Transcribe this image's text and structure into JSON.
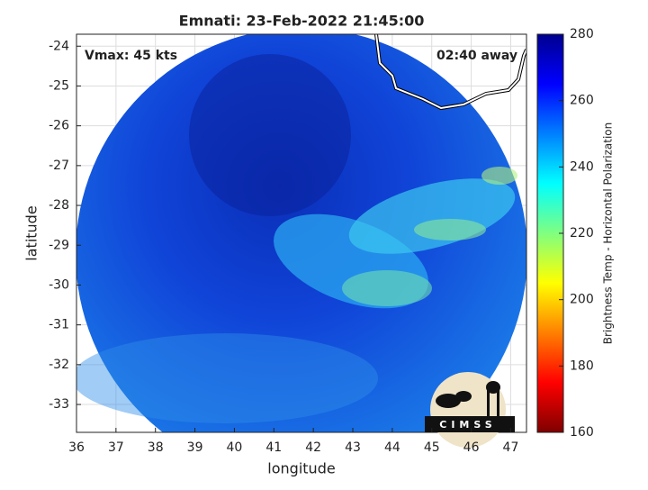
{
  "chart_data": {
    "type": "map",
    "title": "Emnati: 23-Feb-2022 21:45:00",
    "x_label": "longitude",
    "y_label": "latitude",
    "xlim": [
      36,
      47.4
    ],
    "ylim": [
      -33.7,
      -23.7
    ],
    "xticks": [
      36,
      37,
      38,
      39,
      40,
      41,
      42,
      43,
      44,
      45,
      46,
      47
    ],
    "yticks": [
      -24,
      -25,
      -26,
      -27,
      -28,
      -29,
      -30,
      -31,
      -32,
      -33
    ],
    "grid": true,
    "annotations": [
      "Vmax: 45 kts",
      "02:40 away"
    ],
    "colorbar": {
      "label": "Brightness Temp - Horizontal Polarization",
      "colormap": "jet",
      "lim": [
        160,
        280
      ],
      "ticks": [
        160,
        180,
        200,
        220,
        240,
        260,
        280
      ]
    },
    "logo": "CIMSS"
  }
}
